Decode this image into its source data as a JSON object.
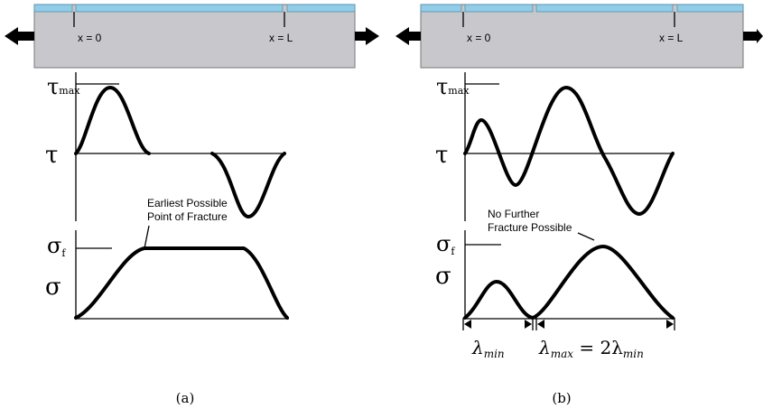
{
  "panels": [
    {
      "x0_label": "x = 0",
      "xL_label": "x = L",
      "tau_max": {
        "symbol": "τ",
        "sub": "max"
      },
      "tau": "τ",
      "annotation": [
        "Earliest Possible",
        "Point of Fracture"
      ],
      "sigma_f": {
        "symbol": "σ",
        "sub": "f"
      },
      "sigma": "σ",
      "caption": "(a)"
    },
    {
      "x0_label": "x = 0",
      "xL_label": "x = L",
      "tau_max": {
        "symbol": "τ",
        "sub": "max"
      },
      "tau": "τ",
      "annotation": [
        "No Further",
        "Fracture Possible"
      ],
      "sigma_f": {
        "symbol": "σ",
        "sub": "f"
      },
      "sigma": "σ",
      "lambda_min": {
        "symbol": "λ",
        "sub": "min"
      },
      "lambda_max": {
        "symbol": "λ",
        "sub": "max",
        "rest": " = 2λ",
        "rest_sub": "min"
      },
      "caption": "(b)"
    }
  ]
}
